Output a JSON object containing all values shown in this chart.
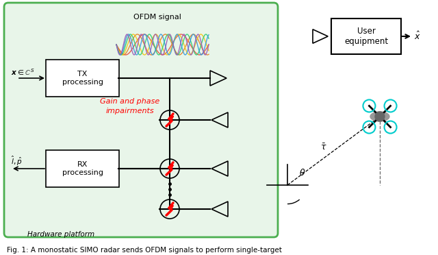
{
  "fig_width": 6.4,
  "fig_height": 3.72,
  "dpi": 100,
  "caption": "Fig. 1: A monostatic SIMO radar sends OFDM signals to perform single-target",
  "bg_color": "#ffffff",
  "green_box_color": "#e8f5e9",
  "green_border_color": "#4caf50",
  "ofdm_colors": [
    "#e74c3c",
    "#e67e22",
    "#f1c40f",
    "#2ecc71",
    "#3498db",
    "#9b59b6"
  ],
  "labels": {
    "ofdm": "OFDM signal",
    "tx": "TX\nprocessing",
    "rx": "RX\nprocessing",
    "x_in": "$\\boldsymbol{x} \\in \\mathbb{C}^S$",
    "l_p": "$\\hat{l}, \\hat{p}$",
    "gain_phase": "Gain and phase\nimpairments",
    "hardware": "Hardware platform",
    "user": "User\nequipment",
    "x_hat": "$\\hat{x}$",
    "tau": "$\\bar{\\tau}$",
    "theta": "$\\theta$"
  }
}
